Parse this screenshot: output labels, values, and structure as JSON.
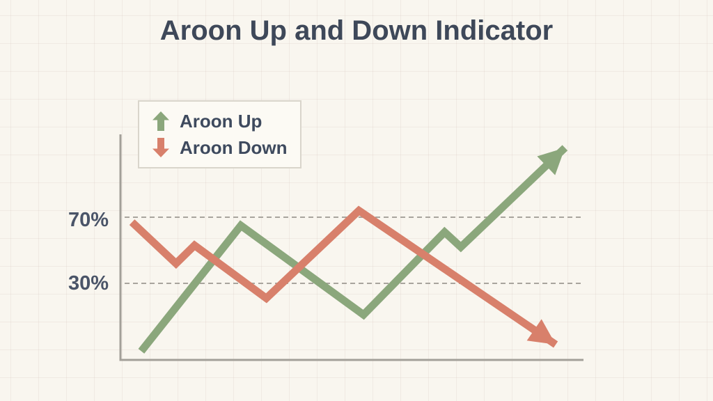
{
  "title": "Aroon Up and Down Indicator",
  "colors": {
    "background": "#f9f6ef",
    "title_text": "#3e4859",
    "tick_text": "#4a5468",
    "legend_text": "#3e4a5e",
    "legend_bg": "#fcfaf4",
    "legend_border": "#d9d5cb",
    "aroon_up": "#8ba77c",
    "aroon_down": "#d8806b",
    "axis": "#a3a099",
    "gridline": "#a8a49d"
  },
  "legend": {
    "items": [
      {
        "label": "Aroon Up",
        "icon": "up-arrow-icon",
        "color_key": "aroon_up"
      },
      {
        "label": "Aroon Down",
        "icon": "down-arrow-icon",
        "color_key": "aroon_down"
      }
    ]
  },
  "chart_data": {
    "type": "line",
    "title": "Aroon Up and Down Indicator",
    "xlabel": "",
    "ylabel": "",
    "x_range": [
      0,
      100
    ],
    "yticks": [
      {
        "label": "70%",
        "value": 70
      },
      {
        "label": "30%",
        "value": 30
      }
    ],
    "grid": "dashed horizontal gridlines at 30% and 70% only",
    "legend_position": "top-left",
    "note": "Stylized illustration: thick zigzag lines with arrowhead ends; endpoints overshoot the 0-100% band as drawn. Points are [x (0-100 along axis), y (percent)].",
    "series": [
      {
        "name": "Aroon Up",
        "color": "#8ba77c",
        "points": [
          [
            4.5,
            -11
          ],
          [
            26,
            65
          ],
          [
            52.5,
            11
          ],
          [
            70,
            61
          ],
          [
            73.5,
            52
          ],
          [
            96,
            112
          ]
        ]
      },
      {
        "name": "Aroon Down",
        "color": "#d8806b",
        "points": [
          [
            2.5,
            67
          ],
          [
            12,
            42
          ],
          [
            16,
            53
          ],
          [
            31.5,
            21
          ],
          [
            51.5,
            74
          ],
          [
            94,
            -7
          ]
        ]
      }
    ]
  }
}
